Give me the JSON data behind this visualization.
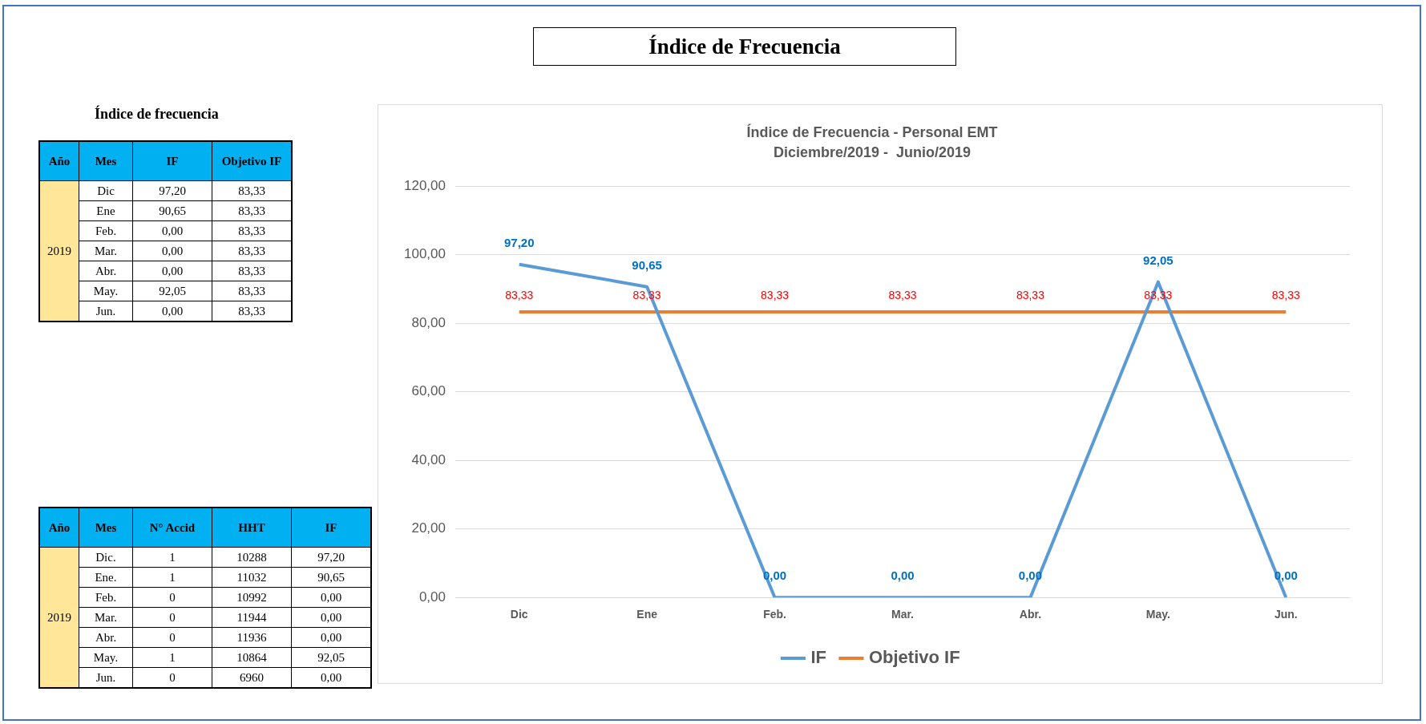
{
  "chart_data": [
    {
      "type": "other",
      "title": "Índice de Frecuencia"
    },
    {
      "type": "heatmap",
      "title": "Índice de frecuencia",
      "annotations": [
        "Año",
        "Mes",
        "2019"
      ],
      "categories": [
        "IF",
        "Objetivo IF"
      ],
      "y_categories": [
        "Dic",
        "Ene",
        "Feb.",
        "Mar.",
        "Abr.",
        "May.",
        "Jun."
      ],
      "cells": [
        [
          97.2,
          83.33
        ],
        [
          90.65,
          83.33
        ],
        [
          0,
          83.33
        ],
        [
          0,
          83.33
        ],
        [
          0,
          83.33
        ],
        [
          92.05,
          83.33
        ],
        [
          0,
          83.33
        ]
      ],
      "cell_labels": [
        [
          "97,20",
          "83,33"
        ],
        [
          "90,65",
          "83,33"
        ],
        [
          "0,00",
          "83,33"
        ],
        [
          "0,00",
          "83,33"
        ],
        [
          "0,00",
          "83,33"
        ],
        [
          "92,05",
          "83,33"
        ],
        [
          "0,00",
          "83,33"
        ]
      ]
    },
    {
      "type": "line",
      "title": "Índice de Frecuencia - Personal EMT",
      "subtitle": "Diciembre/2019 -  Junio/2019",
      "categories": [
        "Dic",
        "Ene",
        "Feb.",
        "Mar.",
        "Abr.",
        "May.",
        "Jun."
      ],
      "series": [
        {
          "name": "IF",
          "color": "#5b9bd5",
          "values": [
            97.2,
            90.65,
            0,
            0,
            0,
            92.05,
            0
          ],
          "value_labels": [
            "97,20",
            "90,65",
            "0,00",
            "0,00",
            "0,00",
            "92,05",
            "0,00"
          ]
        },
        {
          "name": "Objetivo IF",
          "color": "#ed7d31",
          "values": [
            83.33,
            83.33,
            83.33,
            83.33,
            83.33,
            83.33,
            83.33
          ],
          "value_labels": [
            "83,33",
            "83,33",
            "83,33",
            "83,33",
            "83,33",
            "83,33",
            "83,33"
          ]
        }
      ],
      "ylim": [
        0,
        120
      ],
      "yticks": [
        {
          "value": 0,
          "label": "0,00"
        },
        {
          "value": 20,
          "label": "20,00"
        },
        {
          "value": 40,
          "label": "40,00"
        },
        {
          "value": 60,
          "label": "60,00"
        },
        {
          "value": 80,
          "label": "80,00"
        },
        {
          "value": 100,
          "label": "100,00"
        },
        {
          "value": 120,
          "label": "120,00"
        }
      ],
      "grid": "y",
      "legend": "bottom",
      "marker": "none",
      "line_style": "solid"
    },
    {
      "type": "heatmap",
      "annotations": [
        "Año",
        "Mes",
        "2019"
      ],
      "categories": [
        "N° Accid",
        "HHT",
        "IF"
      ],
      "y_categories": [
        "Dic.",
        "Ene.",
        "Feb.",
        "Mar.",
        "Abr.",
        "May.",
        "Jun."
      ],
      "cells": [
        [
          1,
          10288,
          97.2
        ],
        [
          1,
          11032,
          90.65
        ],
        [
          0,
          10992,
          0
        ],
        [
          0,
          11944,
          0
        ],
        [
          0,
          11936,
          0
        ],
        [
          1,
          10864,
          92.05
        ],
        [
          0,
          6960,
          0
        ]
      ],
      "cell_labels": [
        [
          "1",
          "10288",
          "97,20"
        ],
        [
          "1",
          "11032",
          "90,65"
        ],
        [
          "0",
          "10992",
          "0,00"
        ],
        [
          "0",
          "11944",
          "0,00"
        ],
        [
          "0",
          "11936",
          "0,00"
        ],
        [
          "1",
          "10864",
          "92,05"
        ],
        [
          "0",
          "6960",
          "0,00"
        ]
      ]
    }
  ]
}
